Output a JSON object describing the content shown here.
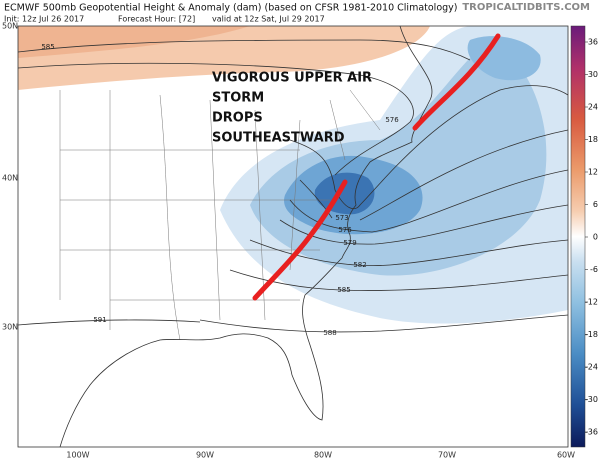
{
  "header": {
    "title": "ECMWF 500mb Geopotential Height & Anomaly (dam) (based on CFSR 1981-2010 Climatology)",
    "init": "Init: 12z Jul 26 2017",
    "forecast_hour": "Forecast Hour: [72]",
    "valid": "valid at 12z Sat, Jul 29 2017",
    "watermark": "TROPICALTIDBITS.COM"
  },
  "annotation": [
    "VIGOROUS UPPER AIR",
    "STORM",
    "DROPS",
    "SOUTHEASTWARD"
  ],
  "latitude_labels": [
    "50N",
    "40N",
    "30N"
  ],
  "longitude_labels": [
    "100W",
    "90W",
    "80W",
    "70W",
    "60W"
  ],
  "contour_labels": [
    "585",
    "576",
    "573",
    "576",
    "579",
    "582",
    "585",
    "588",
    "591"
  ],
  "colorbar": {
    "ticks": [
      36,
      30,
      24,
      18,
      12,
      6,
      0,
      -6,
      -12,
      -18,
      -24,
      -30,
      -36
    ]
  }
}
